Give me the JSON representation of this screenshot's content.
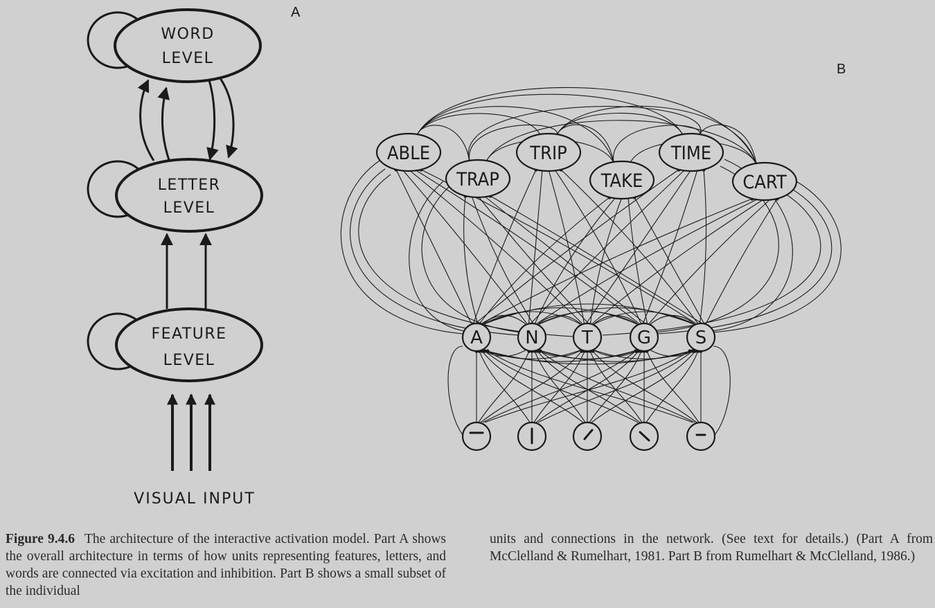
{
  "panel_a": {
    "label": "A",
    "levels": [
      {
        "line1": "WORD",
        "line2": "LEVEL"
      },
      {
        "line1": "LETTER",
        "line2": "LEVEL"
      },
      {
        "line1": "FEATURE",
        "line2": "LEVEL"
      }
    ],
    "input_label": "VISUAL INPUT"
  },
  "panel_b": {
    "label": "B",
    "words": [
      "ABLE",
      "TRIP",
      "TIME",
      "TRAP",
      "TAKE",
      "CART"
    ],
    "letters": [
      "A",
      "N",
      "T",
      "G",
      "S"
    ],
    "features": [
      "horizontal-bar",
      "vertical-bar",
      "diagonal-right",
      "diagonal-left",
      "short-horizontal"
    ]
  },
  "caption": {
    "figure_id": "Figure 9.4.6",
    "left_text": "The architecture of the interactive activation model. Part A shows the overall architecture in terms of how units representing features, letters, and words are connected via excitation and inhibition. Part B shows a small subset of the individual",
    "right_text": "units and connections in the network. (See text for details.) (Part A from McClelland & Rumelhart, 1981. Part B from Rumelhart & McClelland, 1986.)"
  }
}
